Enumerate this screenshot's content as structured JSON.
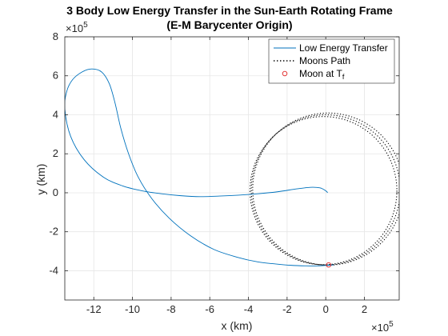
{
  "chart_data": {
    "type": "line",
    "title": "3 Body Low Energy Transfer in the Sun-Earth Rotating Frame",
    "subtitle": "(E-M Barycenter Origin)",
    "xlabel": "x (km)",
    "ylabel": "y (km)",
    "x_multiplier": "×10",
    "x_multiplier_exp": "5",
    "y_multiplier": "×10",
    "y_multiplier_exp": "5",
    "xlim": [
      -13.5,
      3.8
    ],
    "ylim": [
      -5.5,
      8
    ],
    "xticks": [
      -12,
      -10,
      -8,
      -6,
      -4,
      -2,
      0,
      2
    ],
    "yticks": [
      -4,
      -2,
      0,
      2,
      4,
      6,
      8
    ],
    "grid": true,
    "legend_position": "top-right",
    "colors": {
      "transfer": "#0072BD",
      "moon_path": "#000000",
      "moon_marker": "#e02020",
      "grid": "#e6e6e6",
      "axes": "#262626"
    },
    "series": [
      {
        "name": "Low Energy Transfer",
        "style": "solid",
        "x": [
          0.1,
          0.0,
          -0.3,
          -0.8,
          -1.5,
          -2.5,
          -3.5,
          -4.5,
          -5.5,
          -6.5,
          -7.5,
          -8.5,
          -9.5,
          -10.5,
          -11.5,
          -12.5,
          -13.2,
          -13.5,
          -13.4,
          -13.1,
          -12.6,
          -12.1,
          -11.6,
          -11.2,
          -10.9,
          -10.6,
          -10.2,
          -9.7,
          -9.0,
          -8.1,
          -7.0,
          -5.8,
          -4.6,
          -3.5,
          -2.6,
          -1.8,
          -1.0,
          -0.4,
          0.1,
          0.4
        ],
        "y": [
          0.0,
          0.1,
          0.25,
          0.28,
          0.2,
          0.05,
          -0.05,
          -0.12,
          -0.17,
          -0.2,
          -0.15,
          -0.05,
          0.1,
          0.35,
          0.8,
          1.7,
          2.9,
          4.3,
          5.2,
          5.8,
          6.2,
          6.35,
          6.2,
          5.6,
          4.6,
          3.3,
          2.0,
          0.8,
          -0.3,
          -1.3,
          -2.2,
          -2.9,
          -3.3,
          -3.55,
          -3.65,
          -3.72,
          -3.75,
          -3.75,
          -3.72,
          -3.7
        ]
      },
      {
        "name": "Moons Path",
        "style": "dotted",
        "center": [
          0.0,
          0.15
        ],
        "radius": 3.85,
        "loops": 3
      }
    ],
    "marker": {
      "name": "Moon at T",
      "name_sub": "f",
      "x": 0.15,
      "y": -3.7
    }
  }
}
